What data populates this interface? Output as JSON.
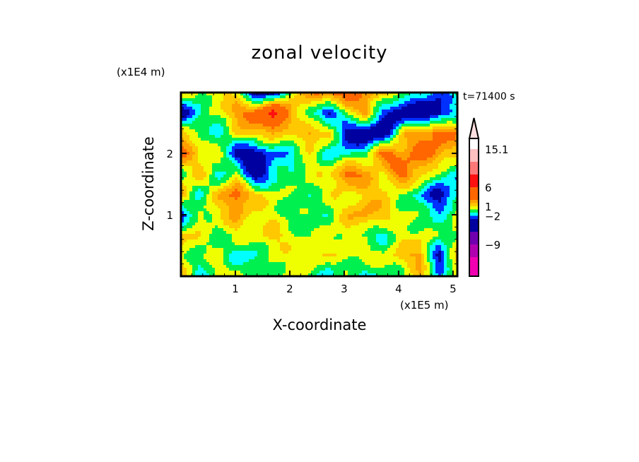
{
  "chart_data": {
    "type": "heatmap",
    "title": "zonal velocity",
    "xlabel": "X-coordinate",
    "ylabel": "Z-coordinate",
    "x_unit": "(x1E5 m)",
    "y_unit": "(x1E4 m)",
    "annotation": "t=71400 s",
    "xlim": [
      0,
      5.08
    ],
    "ylim": [
      0,
      2.99
    ],
    "xticks": [
      1,
      2,
      3,
      4,
      5
    ],
    "xtick_labels": [
      "1",
      "2",
      "3",
      "4",
      "5"
    ],
    "yticks": [
      1,
      2
    ],
    "ytick_labels": [
      "1",
      "2"
    ],
    "minor_tick_step": 0.2,
    "colorbar": {
      "levels": [
        -12,
        -9,
        -6,
        -3,
        -2,
        -1,
        0,
        1,
        2,
        3,
        6,
        9,
        12,
        15.1
      ],
      "colors": [
        "#f000b0",
        "#b000b0",
        "#7000b0",
        "#0000a0",
        "#0030ff",
        "#00ffff",
        "#00f050",
        "#f0ff00",
        "#ffc800",
        "#ffa000",
        "#ff6600",
        "#ff1010",
        "#ff7878",
        "#ffc0c0",
        "#ffe0e0"
      ],
      "labels": [
        "15.1",
        "6",
        "1",
        "-2",
        "-9"
      ],
      "label_values": [
        15.1,
        6,
        1,
        -2,
        -9
      ],
      "extend": "max"
    },
    "values": [
      [
        1,
        -0.5,
        1.5,
        0.5,
        -4,
        -4,
        0.5,
        2.5,
        4,
        4,
        2.5,
        1.5,
        0.5,
        -1.5,
        -2.5,
        -0.5
      ],
      [
        -4,
        -1.5,
        0.5,
        2.5,
        4,
        7,
        2.5,
        -0.5,
        -4,
        0.5,
        2.5,
        -2.5,
        -5,
        -5,
        -4,
        -1.5
      ],
      [
        1.5,
        0.5,
        -2.5,
        1.5,
        1,
        2.5,
        0.5,
        2.5,
        1.5,
        -4,
        -5,
        -5,
        1.5,
        2.5,
        4,
        2.5
      ],
      [
        4,
        0.5,
        1.5,
        -4,
        -4,
        -2.5,
        -1.5,
        0.5,
        -1.5,
        -1.5,
        -0.5,
        4,
        2.5,
        4,
        2.5,
        1.5
      ],
      [
        -0.5,
        1.5,
        -1.5,
        0.5,
        -5,
        -1.5,
        -0.5,
        0.5,
        0.5,
        4,
        2.5,
        0.5,
        4,
        1.5,
        -0.5,
        -1.5
      ],
      [
        2.5,
        -1.5,
        1.5,
        4,
        1.5,
        0.5,
        -0.5,
        -0.5,
        0.5,
        0.5,
        1.5,
        1.5,
        -0.5,
        -1.5,
        -4,
        -1.5
      ],
      [
        -4,
        0.5,
        0.5,
        2.5,
        0.5,
        0.5,
        -0.5,
        -0.5,
        -0.5,
        1.5,
        2.5,
        1.5,
        0.5,
        -0.5,
        -1.5,
        0.5
      ],
      [
        1.5,
        0.5,
        -0.5,
        0.5,
        0.5,
        1.5,
        0.5,
        -0.5,
        0.5,
        0.5,
        -0.5,
        -1.5,
        0.5,
        0.5,
        -0.5,
        0.5
      ],
      [
        0.5,
        -0.5,
        0.5,
        -1.5,
        -1.5,
        0.5,
        0.5,
        1.5,
        0.5,
        0.5,
        0.5,
        0.5,
        1.5,
        2.5,
        -4,
        1.5
      ],
      [
        1.5,
        -1.5,
        0.5,
        0.5,
        -0.5,
        -0.5,
        0.5,
        -0.5,
        -1.5,
        -0.5,
        -1.5,
        -0.5,
        -0.5,
        1.5,
        -1.5,
        0.5
      ]
    ]
  }
}
